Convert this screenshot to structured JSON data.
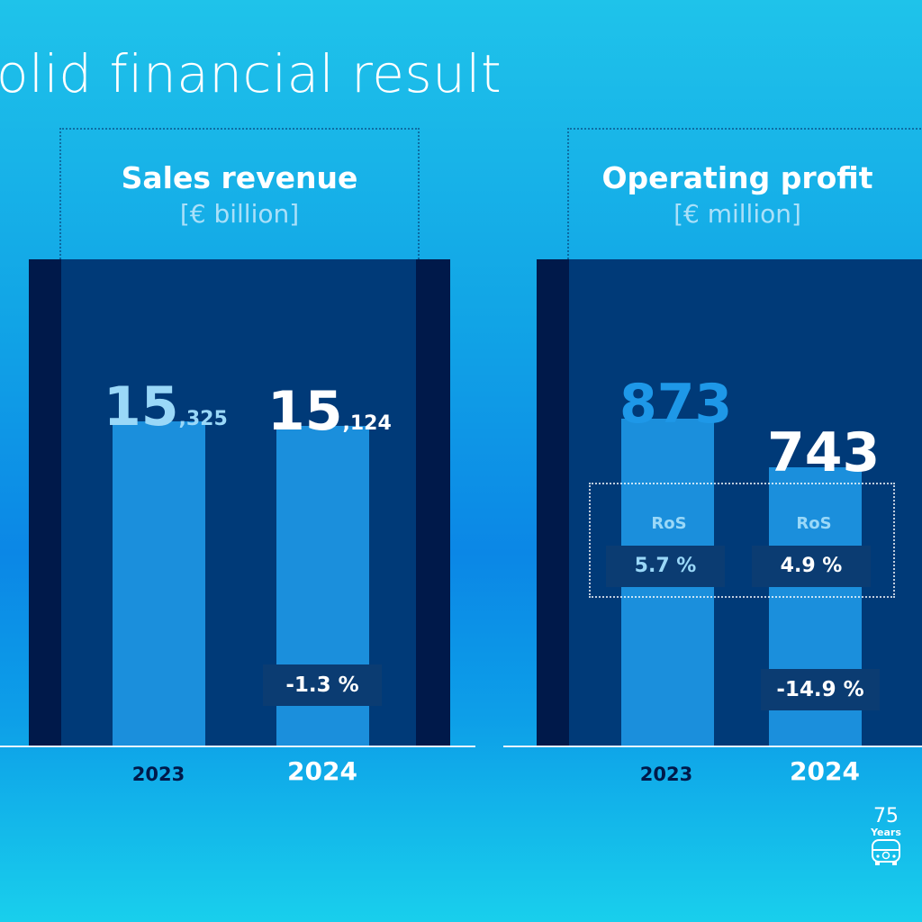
{
  "title": "olid financial result",
  "chart_data": [
    {
      "type": "bar",
      "title": "Sales revenue",
      "unit": "[€ billion]",
      "categories": [
        "2023",
        "2024"
      ],
      "values": [
        15.325,
        15.124
      ],
      "value_labels": [
        {
          "main": "15",
          "sub": ",325"
        },
        {
          "main": "15",
          "sub": ",124"
        }
      ],
      "change_label": "-1.3 %",
      "ylim": [
        0,
        23
      ]
    },
    {
      "type": "bar",
      "title": "Operating profit",
      "unit": "[€ million]",
      "categories": [
        "2023",
        "2024"
      ],
      "values": [
        873,
        743
      ],
      "value_labels": [
        "873",
        "743"
      ],
      "change_label": "-14.9 %",
      "ros": {
        "label": "RoS",
        "values": [
          "5.7 %",
          "4.9 %"
        ]
      },
      "ylim": [
        0,
        1300
      ]
    }
  ],
  "logo": {
    "number": "75",
    "text": "Years"
  },
  "colors": {
    "bar": "#1b8fdc",
    "panel_outer": "#00194a",
    "panel_inner": "#003a78",
    "highlight": "#1e98e8"
  }
}
